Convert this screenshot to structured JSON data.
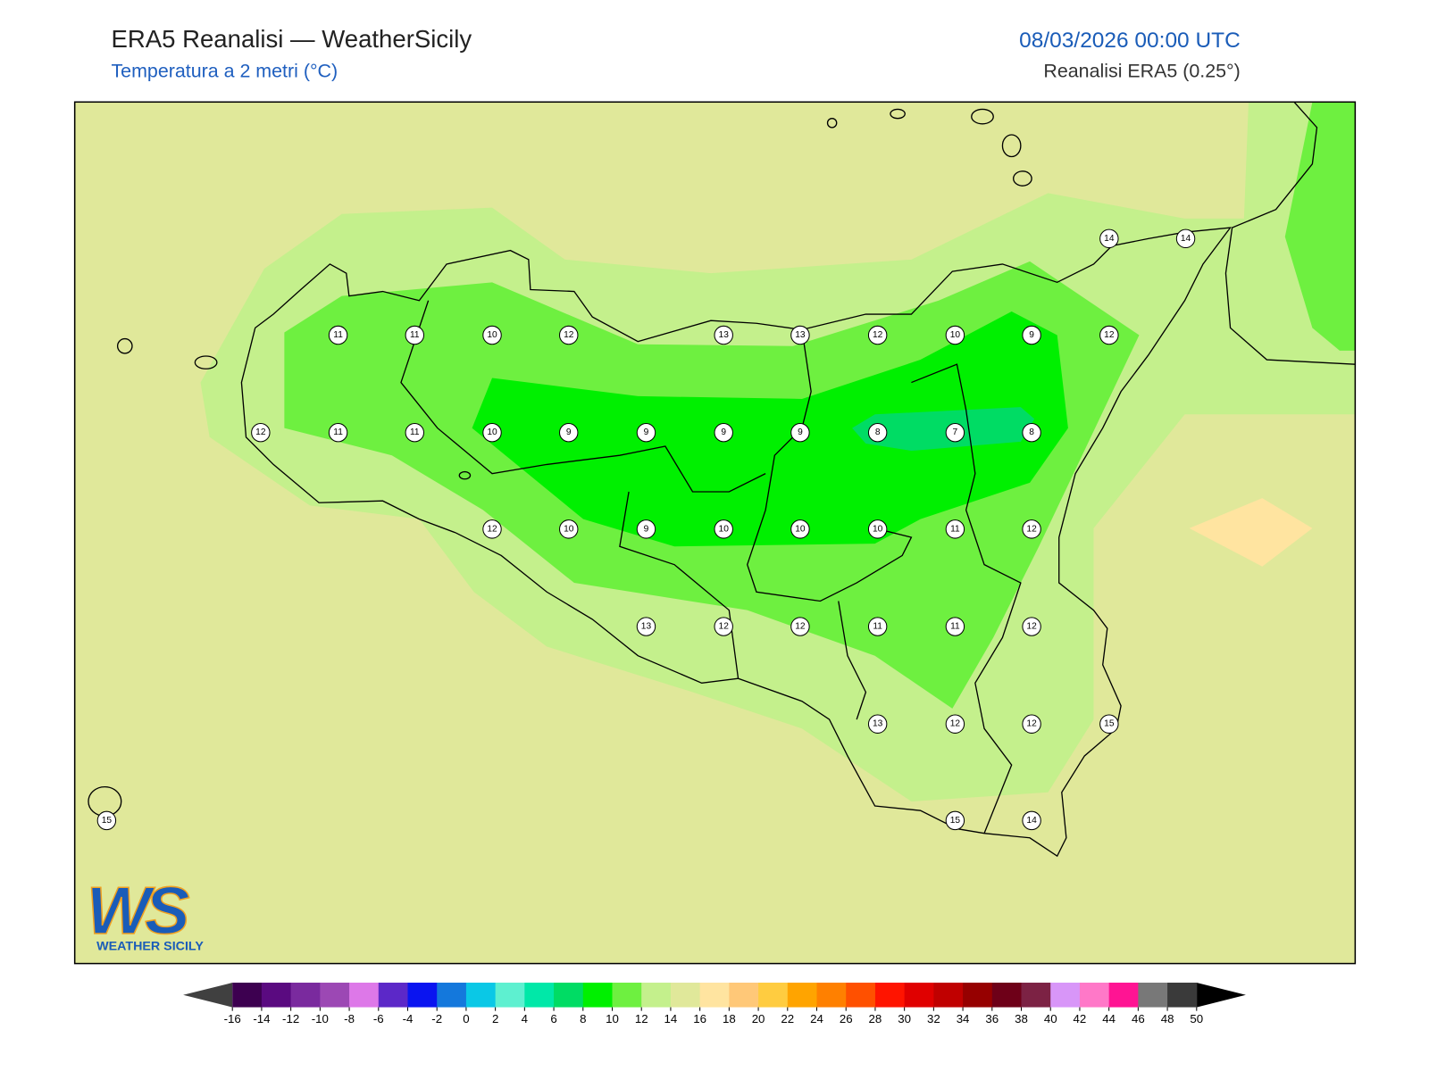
{
  "header": {
    "title": "ERA5 Reanalisi — WeatherSicily",
    "subtitle": "Temperatura a 2 metri (°C)",
    "datetime": "08/03/2026 00:00 UTC",
    "source": "Reanalisi ERA5 (0.25°)"
  },
  "map": {
    "points": [
      14,
      14,
      11,
      11,
      10,
      12,
      13,
      13,
      12,
      10,
      9,
      12,
      12,
      11,
      11,
      10,
      9,
      9,
      9,
      9,
      8,
      7,
      8,
      12,
      10,
      9,
      10,
      10,
      10,
      11,
      12,
      13,
      12,
      12,
      11,
      11,
      12,
      13,
      12,
      12,
      15,
      15,
      15,
      14
    ]
  },
  "colorbar": {
    "ticks": [
      -16,
      -14,
      -12,
      -10,
      -8,
      -6,
      -4,
      -2,
      0,
      2,
      4,
      6,
      8,
      10,
      12,
      14,
      16,
      18,
      20,
      22,
      24,
      26,
      28,
      30,
      32,
      34,
      36,
      38,
      40,
      42,
      44,
      46,
      48,
      50
    ],
    "colors": [
      "#3d0050",
      "#5a0a80",
      "#7a2a9e",
      "#9c48b4",
      "#dd78e8",
      "#5c28c8",
      "#0a14f0",
      "#1478dc",
      "#0ac8e6",
      "#5ef0d0",
      "#00e8a8",
      "#00dc64",
      "#00f000",
      "#6ef040",
      "#c4f08c",
      "#e0e89a",
      "#ffe4a0",
      "#ffc878",
      "#ffcc40",
      "#ffa400",
      "#ff8000",
      "#ff5000",
      "#ff1400",
      "#e00000",
      "#c00000",
      "#960000",
      "#6e0018",
      "#7c2244",
      "#d896f8",
      "#ff78c8",
      "#ff1493",
      "#787878",
      "#3a3a3a"
    ],
    "under_color": "#404040",
    "over_color": "#000000"
  },
  "logo": {
    "mark": "WS",
    "name": "WEATHER SICILY"
  }
}
